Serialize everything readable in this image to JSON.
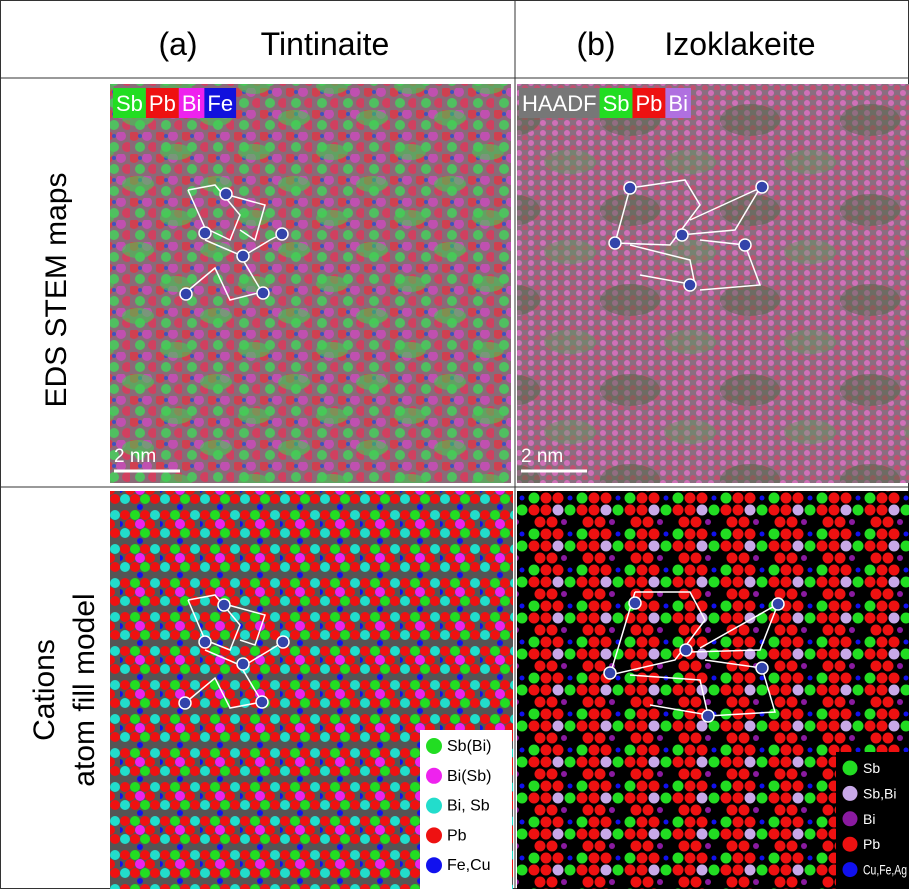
{
  "columns": [
    {
      "label": "(a)",
      "title": "Tintinaite"
    },
    {
      "label": "(b)",
      "title": "Izoklakeite"
    }
  ],
  "rows": [
    {
      "lines": [
        "EDS STEM maps"
      ]
    },
    {
      "lines": [
        "Cations",
        "atom fill model"
      ]
    }
  ],
  "eds_panels": [
    {
      "tags": [
        {
          "text": "Sb",
          "color": "#22dd22"
        },
        {
          "text": "Pb",
          "color": "#ee1111"
        },
        {
          "text": "Bi",
          "color": "#ee22ee"
        },
        {
          "text": "Fe",
          "color": "#1111dd"
        }
      ],
      "scale_bar": "2 nm"
    },
    {
      "tags": [
        {
          "text": "HAADF",
          "color": "#777777"
        },
        {
          "text": "Sb",
          "color": "#22dd22"
        },
        {
          "text": "Pb",
          "color": "#ee1111"
        },
        {
          "text": "Bi",
          "color": "#b070e0"
        }
      ],
      "scale_bar": "2 nm"
    }
  ],
  "model_legends": [
    {
      "items": [
        {
          "text": "Sb(Bi)",
          "color": "#22dd22"
        },
        {
          "text": "Bi(Sb)",
          "color": "#ee22ee"
        },
        {
          "text": "Bi, Sb",
          "color": "#22ddcc"
        },
        {
          "text": "Pb",
          "color": "#ee1111"
        },
        {
          "text": "Fe,Cu",
          "color": "#1111ee"
        }
      ]
    },
    {
      "items": [
        {
          "text": "Sb",
          "color": "#22dd22"
        },
        {
          "text": "Sb,Bi",
          "color": "#c8a8e8"
        },
        {
          "text": "Bi",
          "color": "#8a1aa0"
        },
        {
          "text": "Pb",
          "color": "#ee1111"
        },
        {
          "text": "Cu,Fe,Ag",
          "color": "#1111ee"
        }
      ]
    }
  ]
}
